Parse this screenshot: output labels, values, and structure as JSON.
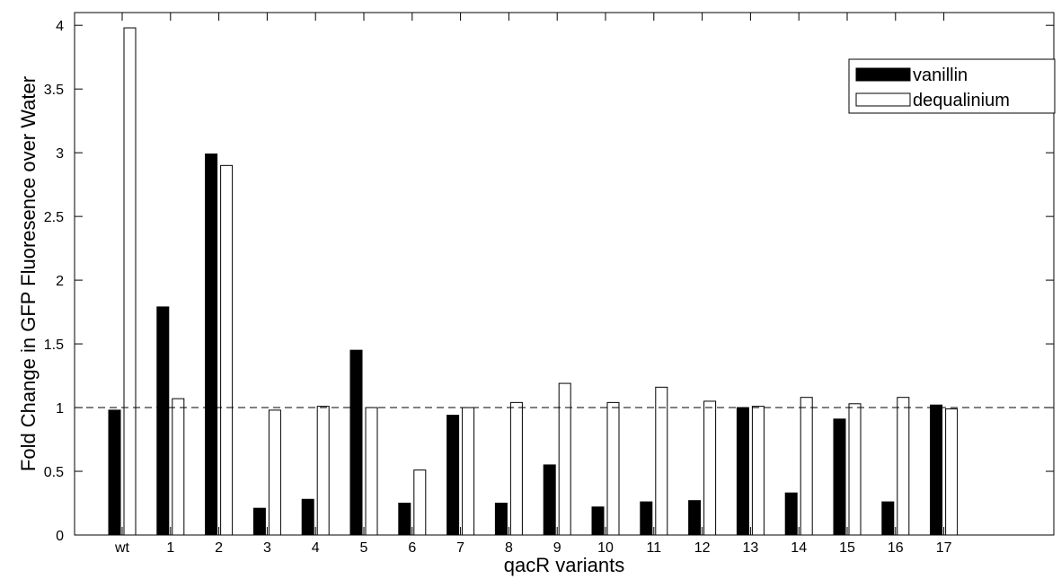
{
  "chart_data": {
    "type": "bar",
    "title": "",
    "xlabel": "qacR variants",
    "ylabel": "Fold Change in GFP Fluoresence over Water",
    "categories": [
      "wt",
      "1",
      "2",
      "3",
      "4",
      "5",
      "6",
      "7",
      "8",
      "9",
      "10",
      "11",
      "12",
      "13",
      "14",
      "15",
      "16",
      "17"
    ],
    "series": [
      {
        "name": "vanillin",
        "color": "#000000",
        "fill": "solid",
        "values": [
          0.98,
          1.79,
          2.99,
          0.21,
          0.28,
          1.45,
          0.25,
          0.94,
          0.25,
          0.55,
          0.22,
          0.26,
          0.27,
          1.0,
          0.33,
          0.91,
          0.26,
          1.02
        ]
      },
      {
        "name": "dequalinium",
        "color": "#ffffff",
        "fill": "outline",
        "values": [
          3.98,
          1.07,
          2.9,
          0.98,
          1.01,
          1.0,
          0.51,
          1.0,
          1.04,
          1.19,
          1.04,
          1.16,
          1.05,
          1.01,
          1.08,
          1.03,
          1.08,
          0.99
        ]
      }
    ],
    "ylim": [
      0,
      4.1
    ],
    "yticks": [
      "0",
      "0.5",
      "1",
      "1.5",
      "2",
      "2.5",
      "3",
      "3.5",
      "4"
    ],
    "reference_line": {
      "y": 1,
      "style": "dashed"
    },
    "grid": false,
    "legend_position": "top-right"
  }
}
